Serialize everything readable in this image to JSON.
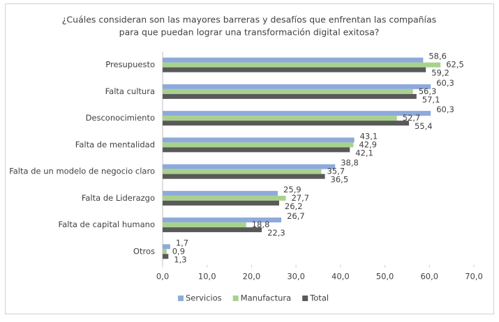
{
  "chart_data": {
    "type": "hbar",
    "title": [
      "¿Cuáles consideran son las mayores barreras y desafíos que enfrentan las compañías",
      "para que puedan lograr una transformación digital exitosa?"
    ],
    "categories": [
      "Presupuesto",
      "Falta cultura",
      "Desconocimiento",
      "Falta de mentalidad",
      "Falta de un modelo de negocio claro",
      "Falta de Liderazgo",
      "Falta de capital humano",
      "Otros"
    ],
    "series": [
      {
        "name": "Servicios",
        "color": "#8eaadb",
        "values": [
          58.6,
          60.3,
          60.3,
          43.1,
          38.8,
          25.9,
          26.7,
          1.7
        ],
        "value_labels": [
          "58,6",
          "60,3",
          "60,3",
          "43,1",
          "38,8",
          "25,9",
          "26,7",
          "1,7"
        ]
      },
      {
        "name": "Manufactura",
        "color": "#a9d18e",
        "values": [
          62.5,
          56.3,
          52.7,
          42.9,
          35.7,
          27.7,
          18.8,
          0.9
        ],
        "value_labels": [
          "62,5",
          "56,3",
          "52,7",
          "42,9",
          "35,7",
          "27,7",
          "18,8",
          "0,9"
        ]
      },
      {
        "name": "Total",
        "color": "#595959",
        "values": [
          59.2,
          57.1,
          55.4,
          42.1,
          36.5,
          26.2,
          22.3,
          1.3
        ],
        "value_labels": [
          "59,2",
          "57,1",
          "55,4",
          "42,1",
          "36,5",
          "26,2",
          "22,3",
          "1,3"
        ]
      }
    ],
    "xlim": [
      0,
      70
    ],
    "xticks": [
      {
        "value": 0,
        "label": "0,0"
      },
      {
        "value": 10,
        "label": "10,0"
      },
      {
        "value": 20,
        "label": "20,0"
      },
      {
        "value": 30,
        "label": "30,0"
      },
      {
        "value": 40,
        "label": "40,0"
      },
      {
        "value": 50,
        "label": "50,0"
      },
      {
        "value": 60,
        "label": "60,0"
      },
      {
        "value": 70,
        "label": "70,0"
      }
    ],
    "grid": false,
    "legend": "bottom"
  }
}
